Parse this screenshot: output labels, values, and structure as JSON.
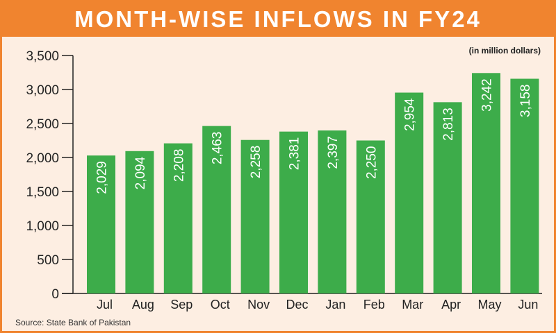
{
  "chart_data": {
    "type": "bar",
    "title": "MONTH-WISE INFLOWS IN FY24",
    "unit_note": "(in million dollars)",
    "source": "Source: State Bank of Pakistan",
    "categories": [
      "Jul",
      "Aug",
      "Sep",
      "Oct",
      "Nov",
      "Dec",
      "Jan",
      "Feb",
      "Mar",
      "Apr",
      "May",
      "Jun"
    ],
    "values": [
      2029,
      2094,
      2208,
      2463,
      2258,
      2381,
      2397,
      2250,
      2954,
      2813,
      3242,
      3158
    ],
    "value_labels": [
      "2,029",
      "2,094",
      "2,208",
      "2,463",
      "2,258",
      "2,381",
      "2,397",
      "2,250",
      "2,954",
      "2,813",
      "3,242",
      "3,158"
    ],
    "yticks": [
      0,
      500,
      1000,
      1500,
      2000,
      2500,
      3000,
      3500
    ],
    "ytick_labels": [
      "0",
      "500",
      "1,000",
      "1,500",
      "2,000",
      "2,500",
      "3,000",
      "3,500"
    ],
    "ylim": [
      0,
      3500
    ],
    "xlabel": "",
    "ylabel": "",
    "grid": false,
    "colors": {
      "bar": "#3dac4a",
      "frame": "#f0842f",
      "background": "#fdeee2"
    }
  }
}
